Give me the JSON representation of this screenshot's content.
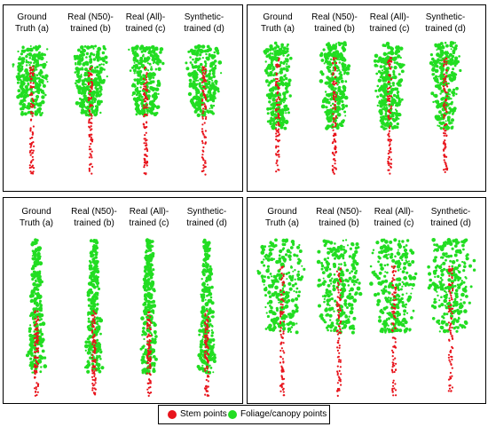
{
  "colors": {
    "stem": "#e8141c",
    "foliage": "#22dd22"
  },
  "panels": [
    {
      "id": "top-left",
      "labels": [
        "Ground\nTruth (a)",
        "Real (N50)-\ntrained (b)",
        "Real (All)-\ntrained (c)",
        "Synthetic-\ntrained (d)"
      ]
    },
    {
      "id": "top-right",
      "labels": [
        "Ground\nTruth (a)",
        "Real (N50)-\ntrained (b)",
        "Real (All)-\ntrained (c)",
        "Synthetic-\ntrained (d)"
      ]
    },
    {
      "id": "bottom-left",
      "labels": [
        "Ground\nTruth (a)",
        "Real (N50)-\ntrained (b)",
        "Real (All)-\ntrained (c)",
        "Synthetic-\ntrained (d)"
      ]
    },
    {
      "id": "bottom-right",
      "labels": [
        "Ground\nTruth (a)",
        "Real (N50)-\ntrained (b)",
        "Real (All)-\ntrained (c)",
        "Synthetic-\ntrained (d)"
      ]
    }
  ],
  "legend": {
    "stem_label": "Stem points",
    "foliage_label": "Foliage/canopy points"
  }
}
